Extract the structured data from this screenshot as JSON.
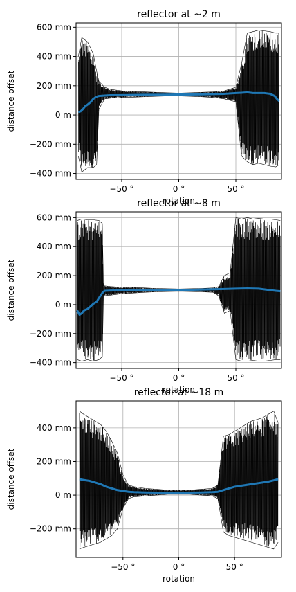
{
  "colors": {
    "envelope": "#000000",
    "mean_line": "#1f77b4",
    "grid": "#b0b0b0",
    "axes": "#000000"
  },
  "chart_data": [
    {
      "type": "line",
      "title": "reflector at ~2 m",
      "xlabel": "rotation",
      "ylabel": "distance offset",
      "xlim": [
        -90,
        90
      ],
      "ylim": [
        -440,
        630
      ],
      "grid": true,
      "xticks": [
        {
          "v": -50,
          "label": "−50 °"
        },
        {
          "v": 0,
          "label": "0 °"
        },
        {
          "v": 50,
          "label": "50 °"
        }
      ],
      "yticks": [
        {
          "v": 600,
          "label": "600 mm"
        },
        {
          "v": 400,
          "label": "400 mm"
        },
        {
          "v": 200,
          "label": "200 mm"
        },
        {
          "v": 0,
          "label": "0 m"
        },
        {
          "v": -200,
          "label": "−200 mm"
        },
        {
          "v": -400,
          "label": "−400 mm"
        }
      ],
      "envelope": {
        "x": [
          -88,
          -85,
          -80,
          -75,
          -72,
          -70,
          -65,
          -60,
          -50,
          -40,
          -30,
          -20,
          -10,
          0,
          10,
          20,
          30,
          40,
          50,
          55,
          60,
          65,
          70,
          75,
          80,
          85,
          88
        ],
        "upper": [
          400,
          530,
          500,
          420,
          300,
          230,
          190,
          175,
          165,
          160,
          158,
          155,
          152,
          150,
          152,
          155,
          158,
          165,
          190,
          350,
          560,
          570,
          580,
          575,
          570,
          560,
          560
        ],
        "lower": [
          -280,
          -390,
          -360,
          -360,
          -340,
          40,
          110,
          115,
          120,
          122,
          125,
          128,
          130,
          130,
          128,
          125,
          120,
          110,
          90,
          -280,
          -320,
          -340,
          -330,
          -340,
          -350,
          -355,
          -340
        ]
      },
      "mean": {
        "x": [
          -88,
          -86,
          -84,
          -82,
          -80,
          -77,
          -75,
          -72,
          -70,
          -65,
          -60,
          -50,
          -40,
          -30,
          -20,
          -10,
          0,
          10,
          20,
          30,
          40,
          50,
          55,
          60,
          65,
          70,
          75,
          80,
          84,
          86,
          88
        ],
        "y": [
          20,
          25,
          40,
          60,
          70,
          90,
          110,
          125,
          130,
          133,
          135,
          136,
          137,
          138,
          138,
          139,
          140,
          140,
          141,
          143,
          145,
          150,
          152,
          155,
          150,
          150,
          150,
          145,
          130,
          110,
          95
        ]
      }
    },
    {
      "type": "line",
      "title": "reflector at ~8 m",
      "xlabel": "rotation",
      "ylabel": "distance offset",
      "xlim": [
        -90,
        90
      ],
      "ylim": [
        -440,
        640
      ],
      "grid": true,
      "xticks": [
        {
          "v": -50,
          "label": "−50 °"
        },
        {
          "v": 0,
          "label": "0 °"
        },
        {
          "v": 50,
          "label": "50 °"
        }
      ],
      "yticks": [
        {
          "v": 600,
          "label": "600 mm"
        },
        {
          "v": 400,
          "label": "400 mm"
        },
        {
          "v": 200,
          "label": "200 mm"
        },
        {
          "v": 0,
          "label": "0 m"
        },
        {
          "v": -200,
          "label": "−200 mm"
        },
        {
          "v": -400,
          "label": "−400 mm"
        }
      ],
      "envelope": {
        "x": [
          -89,
          -85,
          -80,
          -75,
          -70,
          -67,
          -66,
          -60,
          -50,
          -40,
          -30,
          -20,
          -10,
          0,
          10,
          20,
          30,
          35,
          40,
          45,
          50,
          55,
          60,
          65,
          70,
          75,
          80,
          85,
          89
        ],
        "upper": [
          580,
          590,
          585,
          585,
          580,
          560,
          130,
          125,
          120,
          118,
          115,
          112,
          110,
          108,
          110,
          112,
          115,
          125,
          200,
          220,
          600,
          590,
          600,
          590,
          595,
          590,
          590,
          585,
          580
        ],
        "lower": [
          -380,
          -390,
          -380,
          -390,
          -380,
          -360,
          60,
          65,
          75,
          80,
          85,
          88,
          90,
          92,
          90,
          88,
          85,
          60,
          -60,
          -40,
          -380,
          -390,
          -390,
          -385,
          -390,
          -390,
          -385,
          -380,
          -380
        ]
      },
      "mean": {
        "x": [
          -89,
          -87,
          -85,
          -83,
          -80,
          -77,
          -75,
          -72,
          -70,
          -67,
          -65,
          -60,
          -50,
          -40,
          -30,
          -20,
          -10,
          0,
          10,
          20,
          30,
          40,
          50,
          60,
          70,
          80,
          85,
          89
        ],
        "y": [
          -40,
          -70,
          -60,
          -40,
          -30,
          -10,
          5,
          20,
          45,
          80,
          95,
          97,
          98,
          99,
          100,
          100,
          100,
          100,
          102,
          104,
          106,
          108,
          110,
          112,
          110,
          100,
          95,
          92
        ]
      }
    },
    {
      "type": "line",
      "title": "reflector at ~18 m",
      "xlabel": "rotation",
      "ylabel": "distance offset",
      "xlim": [
        -92,
        92
      ],
      "ylim": [
        -370,
        560
      ],
      "grid": true,
      "xticks": [
        {
          "v": -50,
          "label": "−50 °"
        },
        {
          "v": 0,
          "label": "0 °"
        },
        {
          "v": 50,
          "label": "50 °"
        }
      ],
      "yticks": [
        {
          "v": 400,
          "label": "400 mm"
        },
        {
          "v": 200,
          "label": "200 mm"
        },
        {
          "v": 0,
          "label": "0 m"
        },
        {
          "v": -200,
          "label": "−200 mm"
        }
      ],
      "envelope": {
        "x": [
          -89,
          -85,
          -80,
          -75,
          -70,
          -65,
          -60,
          -55,
          -50,
          -45,
          -40,
          -30,
          -20,
          -10,
          0,
          10,
          20,
          30,
          35,
          40,
          45,
          50,
          55,
          60,
          65,
          70,
          75,
          80,
          85,
          89
        ],
        "upper": [
          500,
          480,
          460,
          440,
          420,
          380,
          320,
          250,
          120,
          60,
          50,
          40,
          35,
          30,
          30,
          30,
          35,
          40,
          60,
          350,
          360,
          380,
          400,
          420,
          440,
          450,
          460,
          480,
          500,
          430
        ],
        "lower": [
          -320,
          -310,
          -300,
          -290,
          -280,
          -260,
          -240,
          -200,
          -80,
          -20,
          -10,
          -5,
          0,
          5,
          5,
          5,
          0,
          -5,
          -20,
          -220,
          -240,
          -250,
          -260,
          -270,
          -280,
          -290,
          -300,
          -310,
          -320,
          -280
        ]
      },
      "mean": {
        "x": [
          -89,
          -85,
          -80,
          -75,
          -70,
          -65,
          -60,
          -55,
          -50,
          -45,
          -40,
          -30,
          -20,
          -10,
          0,
          10,
          20,
          30,
          35,
          40,
          45,
          50,
          55,
          60,
          65,
          70,
          75,
          80,
          85,
          89
        ],
        "y": [
          95,
          90,
          85,
          75,
          65,
          50,
          40,
          30,
          25,
          20,
          18,
          16,
          15,
          15,
          15,
          15,
          16,
          18,
          20,
          30,
          40,
          50,
          55,
          60,
          65,
          70,
          75,
          80,
          88,
          95
        ]
      }
    }
  ]
}
